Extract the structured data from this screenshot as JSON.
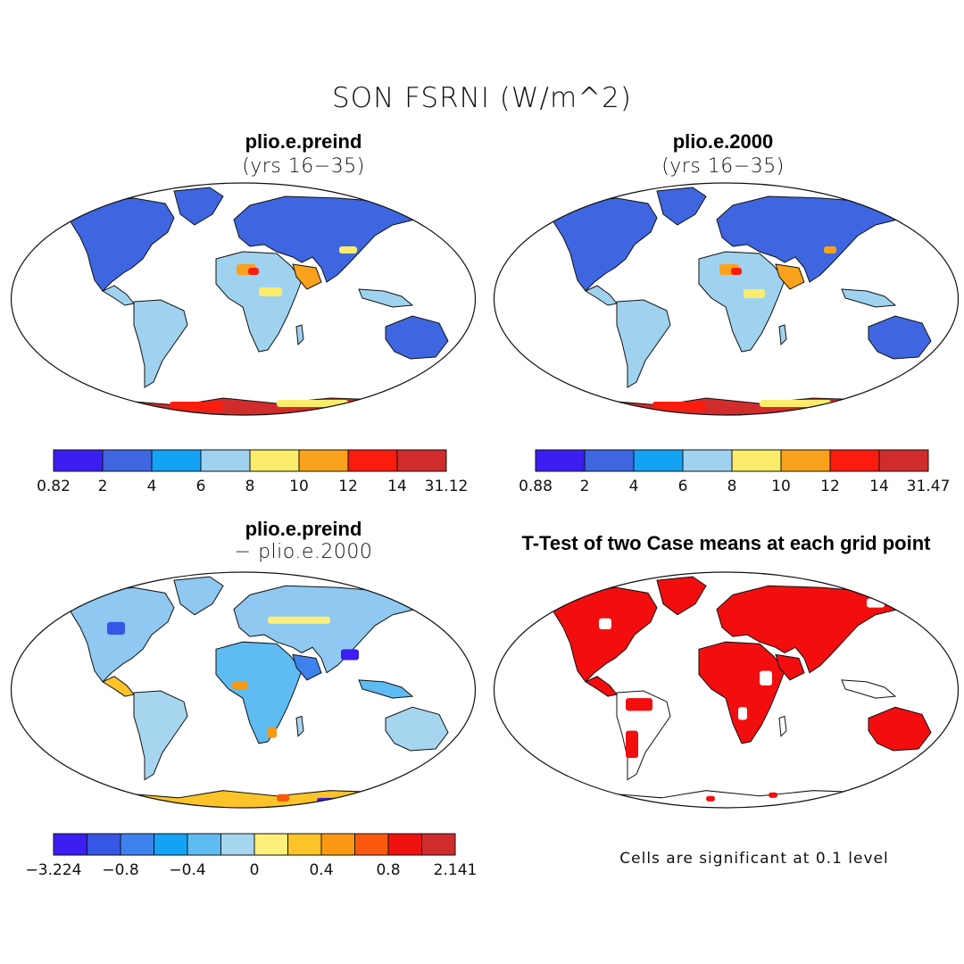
{
  "figure": {
    "title": "SON FSRNI (W/m^2)"
  },
  "panels": [
    {
      "id": "preind",
      "title": "plio.e.preind",
      "subtitle": "(yrs 16−35)",
      "colorbar": {
        "labels": [
          "0.82",
          "2",
          "4",
          "6",
          "8",
          "10",
          "12",
          "14",
          "31.12"
        ],
        "colors": [
          "#3a1ef2",
          "#3e66e0",
          "#14a2f5",
          "#9fd2ee",
          "#fcec6c",
          "#fba21c",
          "#fb1c0e",
          "#d02c2c"
        ]
      }
    },
    {
      "id": "y2000",
      "title": "plio.e.2000",
      "subtitle": "(yrs 16−35)",
      "colorbar": {
        "labels": [
          "0.88",
          "2",
          "4",
          "6",
          "8",
          "10",
          "12",
          "14",
          "31.47"
        ],
        "colors": [
          "#3a1ef2",
          "#3e66e0",
          "#14a2f5",
          "#9fd2ee",
          "#fcec6c",
          "#fba21c",
          "#fb1c0e",
          "#d02c2c"
        ]
      }
    },
    {
      "id": "diff",
      "title": "plio.e.preind",
      "subtitle": "− plio.e.2000",
      "colorbar": {
        "labels": [
          "−3.224",
          "−0.8",
          "−0.4",
          "0",
          "0.4",
          "0.8",
          "2.141"
        ],
        "colors": [
          "#3a1ef2",
          "#3656e6",
          "#3e82ee",
          "#14a2f5",
          "#5ebcf2",
          "#a6d6ef",
          "#fcf07a",
          "#fcc428",
          "#fb9a12",
          "#fb5a0e",
          "#f0120e",
          "#d02c2c"
        ]
      }
    },
    {
      "id": "ttest",
      "title": "T-Test of two Case means at each grid point",
      "note": "Cells are significant at 0.1 level"
    }
  ]
}
